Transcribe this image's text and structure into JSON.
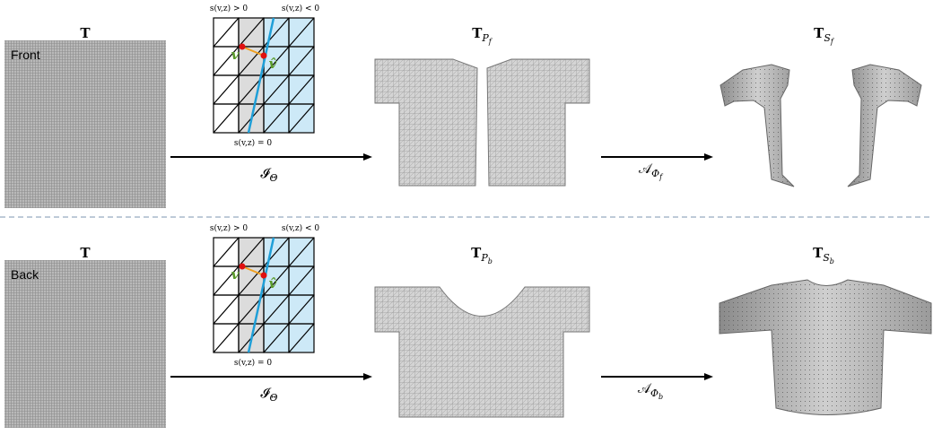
{
  "rows": [
    {
      "texture_label": "T",
      "side": "Front",
      "grid": {
        "positive": "s(v,z) > 0",
        "negative": "s(v,z) < 0",
        "zero": "s(v,z) = 0",
        "vertex": "v",
        "projected": "v̂"
      },
      "mapping": {
        "main": "𝓘",
        "sub": "Θ"
      },
      "pattern": {
        "main": "T",
        "sub": "P",
        "subsub": "f"
      },
      "deform": {
        "main": "𝒜",
        "sub": "Φ",
        "subsub": "f"
      },
      "shape": {
        "main": "T",
        "sub": "S",
        "subsub": "f"
      }
    },
    {
      "texture_label": "T",
      "side": "Back",
      "grid": {
        "positive": "s(v,z) > 0",
        "negative": "s(v,z) < 0",
        "zero": "s(v,z) = 0",
        "vertex": "v",
        "projected": "v̂"
      },
      "mapping": {
        "main": "𝓘",
        "sub": "Θ"
      },
      "pattern": {
        "main": "T",
        "sub": "P",
        "subsub": "b"
      },
      "deform": {
        "main": "𝒜",
        "sub": "Φ",
        "subsub": "b"
      },
      "shape": {
        "main": "T",
        "sub": "S",
        "subsub": "b"
      }
    }
  ]
}
